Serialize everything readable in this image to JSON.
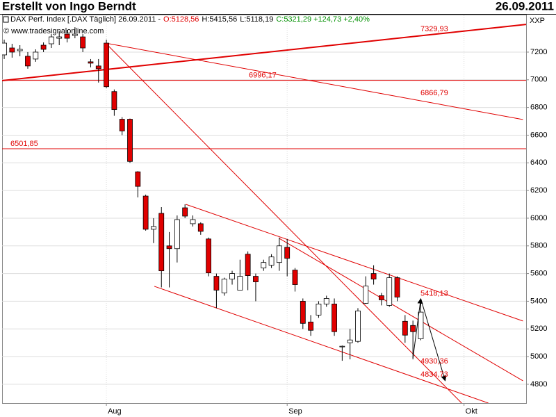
{
  "header": {
    "author": "Erstellt von Ingo Berndt",
    "date": "26.09.2011"
  },
  "chart_data": {
    "type": "candlestick",
    "title": "DAX Perf. Index [.DAX Täglich] 26.09.2011 -",
    "quote": {
      "open": "O:5128,56",
      "high": "H:5415,56",
      "low": "L:5118,19",
      "close": "C:5321,29 +124,73 +2,40%"
    },
    "source": "© www.tradesignalonline.com",
    "axis_label": "XXP",
    "categories": [
      null,
      null,
      null,
      null,
      null,
      null,
      null,
      null,
      null,
      null,
      null,
      null,
      null,
      null,
      null,
      null,
      null,
      null,
      null,
      null,
      null,
      null,
      null,
      null,
      null,
      null,
      null,
      null,
      null,
      null,
      null,
      null,
      null,
      null,
      null,
      null,
      null,
      null,
      null,
      null,
      null,
      null,
      null,
      null,
      null,
      null,
      null,
      null,
      null,
      null,
      null,
      null,
      null,
      null
    ],
    "open": [
      7180,
      7230,
      7210,
      7170,
      7150,
      7250,
      7260,
      7300,
      7330,
      7320,
      7310,
      7130,
      7100,
      7265,
      6915,
      6715,
      6715,
      6335,
      6160,
      5920,
      6035,
      5800,
      5780,
      6075,
      5960,
      5960,
      5850,
      5580,
      5460,
      5560,
      5480,
      5740,
      5580,
      5640,
      5660,
      5680,
      5790,
      5625,
      5400,
      5250,
      5300,
      5380,
      5380,
      5070,
      5100,
      5110,
      5385,
      5600,
      5440,
      5370,
      5570,
      5255,
      5225,
      5128.56
    ],
    "high": [
      7290,
      7260,
      7250,
      7200,
      7220,
      7270,
      7330,
      7350,
      7360,
      7380,
      7330,
      7150,
      7150,
      7290,
      6930,
      6730,
      6720,
      6340,
      6170,
      6000,
      6080,
      5900,
      6020,
      6100,
      6020,
      5970,
      5860,
      5600,
      5570,
      5620,
      5700,
      5760,
      5600,
      5700,
      5740,
      5860,
      5850,
      5640,
      5420,
      5300,
      5400,
      5440,
      5420,
      5080,
      5200,
      5350,
      5580,
      5660,
      5460,
      5600,
      5580,
      5300,
      5260,
      5415.56
    ],
    "low": [
      7150,
      7160,
      7170,
      7080,
      7130,
      7200,
      7230,
      7250,
      7270,
      7300,
      7200,
      7090,
      6980,
      6940,
      6740,
      6600,
      6400,
      6150,
      5910,
      5820,
      5500,
      5500,
      5680,
      6000,
      5940,
      5880,
      5580,
      5350,
      5440,
      5520,
      5480,
      5480,
      5400,
      5620,
      5640,
      5620,
      5580,
      5470,
      5200,
      5150,
      5280,
      5360,
      5150,
      4970,
      4980,
      5100,
      5380,
      5520,
      5370,
      5360,
      5400,
      5100,
      4980,
      5118.19
    ],
    "close": [
      7265,
      7200,
      7220,
      7100,
      7200,
      7220,
      7310,
      7310,
      7300,
      7330,
      7230,
      7120,
      7080,
      6950,
      6785,
      6630,
      6410,
      6230,
      5920,
      5940,
      5620,
      5780,
      5990,
      6015,
      5990,
      5905,
      5605,
      5480,
      5560,
      5600,
      5580,
      5585,
      5540,
      5680,
      5720,
      5800,
      5710,
      5520,
      5240,
      5190,
      5380,
      5420,
      5180,
      5075,
      5120,
      5330,
      5510,
      5560,
      5410,
      5570,
      5430,
      5155,
      5180,
      5321.29
    ],
    "up_color": "#ffffff",
    "down_color": "#e00000",
    "line_color": "#e00000",
    "xlim": [
      -0.27,
      66.4
    ],
    "xticks": [
      {
        "value": 13,
        "label": "Aug"
      },
      {
        "value": 36,
        "label": "Sep"
      },
      {
        "value": 58.5,
        "label": "Okt"
      }
    ],
    "ylim": [
      4664,
      7466
    ],
    "yticks": [
      4800,
      5000,
      5200,
      5400,
      5600,
      5800,
      6000,
      6200,
      6400,
      6600,
      6800,
      7000,
      7200
    ],
    "grid": true,
    "trendlines": [
      {
        "x": [
          -0.27,
          66.4
        ],
        "y": [
          6994,
          7400
        ],
        "width": 2
      },
      {
        "x": [
          12.9,
          66
        ],
        "y": [
          7265,
          6713
        ],
        "width": 1
      },
      {
        "x": [
          12.9,
          58.2
        ],
        "y": [
          7265,
          4664
        ],
        "width": 1
      },
      {
        "x": [
          23.1,
          66
        ],
        "y": [
          6100,
          5257
        ],
        "width": 1
      },
      {
        "x": [
          19.1,
          61.6
        ],
        "y": [
          5508,
          4664
        ],
        "width": 1
      },
      {
        "x": [
          35,
          66
        ],
        "y": [
          5854,
          4825
        ],
        "width": 1
      }
    ],
    "arrow": {
      "x": [
        52,
        53,
        56.1
      ],
      "y": [
        4990,
        5418,
        4826
      ],
      "color": "#000000"
    },
    "annotations": [
      {
        "value": 7329.93,
        "label": "7329,93",
        "hline": false
      },
      {
        "value": 6996.17,
        "label": "6996,17",
        "hline": true
      },
      {
        "value": 6866.79,
        "label": "6866,79",
        "hline": false
      },
      {
        "value": 6501.85,
        "label": "6501,85",
        "hline": true
      },
      {
        "value": 5418.13,
        "label": "5418,13",
        "hline": false
      },
      {
        "value": 4930.36,
        "label": "4930,36",
        "hline": false
      },
      {
        "value": 4834.73,
        "label": "4834,73",
        "hline": false
      }
    ]
  }
}
